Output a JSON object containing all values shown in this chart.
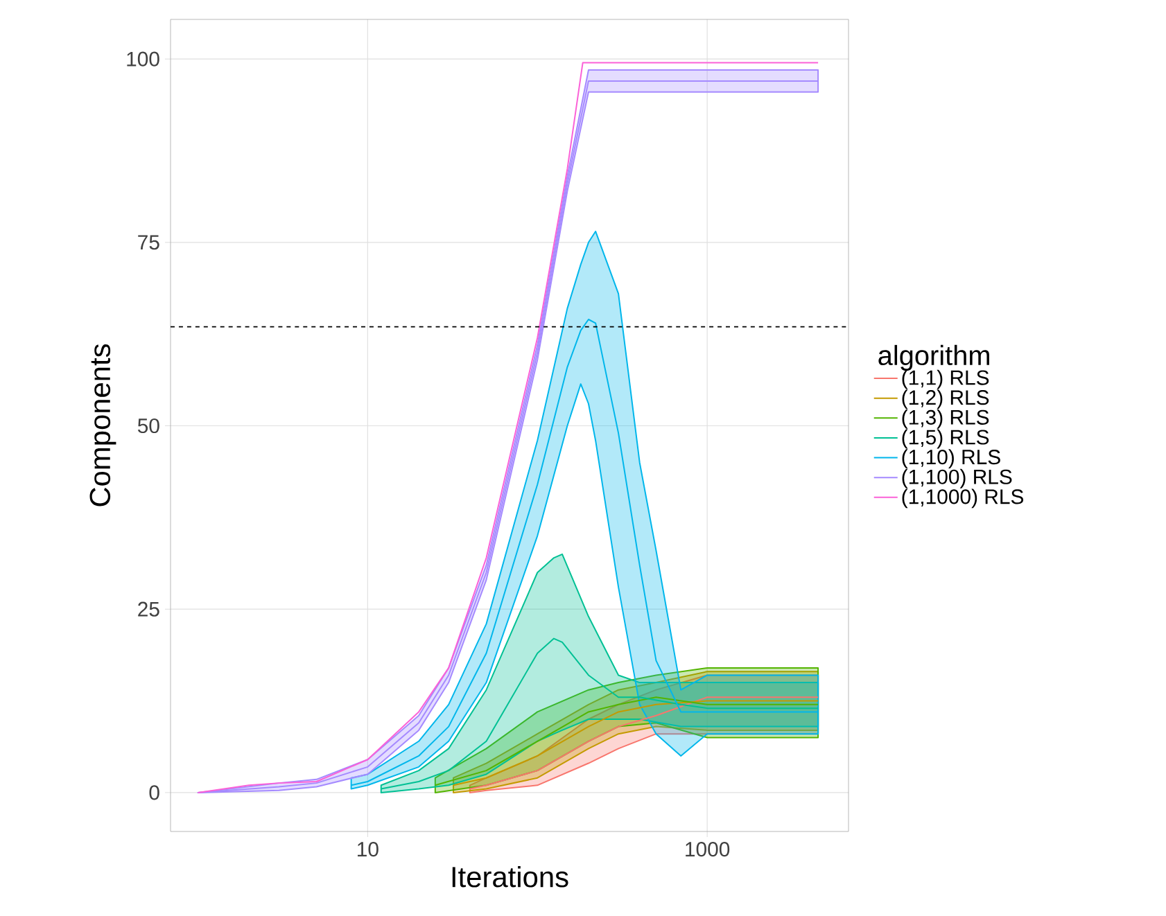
{
  "chart_data": {
    "type": "line",
    "xlabel": "Iterations",
    "ylabel": "Components",
    "legend_title": "algorithm",
    "log": "x",
    "grid": true,
    "legend": "right",
    "line_style": "solid",
    "marker": "none",
    "xlim": [
      0.69,
      6800
    ],
    "ylim": [
      -5.3,
      105.4
    ],
    "xticks": [
      10,
      1000
    ],
    "yticks": [
      0,
      25,
      50,
      75,
      100
    ],
    "ref_lines": [
      {
        "axis": "y",
        "value": 63.5,
        "color": "#000000",
        "line_style": "dashed"
      }
    ],
    "series": [
      {
        "name": "(1,1) RLS",
        "color": "#F8766D",
        "x": [
          40,
          50,
          100,
          200,
          300,
          500,
          1000,
          1500,
          2000,
          3000,
          4500
        ],
        "values": [
          0.5,
          1,
          3,
          7,
          9,
          10.5,
          13,
          13,
          13,
          13,
          13
        ],
        "lower": [
          0,
          0.3,
          1,
          4,
          6,
          8,
          8,
          8,
          8,
          8,
          8
        ],
        "upper": [
          1,
          2,
          5,
          10,
          12,
          14,
          16,
          16,
          16,
          16,
          16
        ]
      },
      {
        "name": "(1,2) RLS",
        "color": "#C49A00",
        "x": [
          32,
          50,
          100,
          200,
          300,
          500,
          1000,
          1500,
          2000,
          3000,
          4500
        ],
        "values": [
          1,
          2,
          5,
          9,
          11,
          12,
          12.5,
          12.5,
          12.5,
          12.5,
          12.5
        ],
        "lower": [
          0,
          0.5,
          2,
          6,
          8,
          9,
          8.5,
          8.5,
          8.5,
          8.5,
          8.5
        ],
        "upper": [
          2,
          4,
          8,
          12,
          14,
          15,
          16.5,
          16.5,
          16.5,
          16.5,
          16.5
        ]
      },
      {
        "name": "(1,3) RLS",
        "color": "#53B400",
        "x": [
          25,
          50,
          100,
          200,
          300,
          500,
          1000,
          1500,
          2000,
          3000,
          4500
        ],
        "values": [
          1,
          3,
          7,
          11,
          12,
          13,
          12,
          12,
          12,
          12,
          12
        ],
        "lower": [
          0,
          1,
          3,
          7,
          9,
          9.5,
          7.5,
          7.5,
          7.5,
          7.5,
          7.5
        ],
        "upper": [
          2,
          6,
          11,
          14,
          15,
          16,
          17,
          17,
          17,
          17,
          17
        ]
      },
      {
        "name": "(1,5) RLS",
        "color": "#00C094",
        "x": [
          12,
          20,
          30,
          50,
          100,
          125,
          140,
          200,
          300,
          400,
          700,
          1000,
          2000,
          4500
        ],
        "values": [
          0.5,
          1.5,
          3,
          7,
          19,
          21,
          20.5,
          16,
          13,
          13,
          12,
          11.5,
          11.5,
          11.5
        ],
        "lower": [
          0,
          0.5,
          1,
          2.5,
          7,
          8,
          8.5,
          10,
          10,
          10,
          9,
          9,
          9,
          9
        ],
        "upper": [
          1,
          3,
          6,
          14,
          30,
          32,
          32.5,
          24,
          16,
          15,
          15,
          15,
          15,
          15
        ]
      },
      {
        "name": "(1,10) RLS",
        "color": "#00B6EB",
        "x": [
          8,
          10,
          20,
          30,
          50,
          100,
          150,
          180,
          200,
          220,
          300,
          400,
          500,
          700,
          1000,
          1500,
          2000,
          3000,
          4500
        ],
        "values": [
          1,
          1.5,
          5,
          9,
          19,
          42,
          58,
          63,
          64.5,
          64,
          49,
          31,
          18,
          11,
          11,
          11,
          11,
          11,
          11
        ],
        "lower": [
          0.5,
          1,
          3.5,
          7,
          15,
          35,
          50,
          55.7,
          53,
          48,
          28,
          12,
          8,
          5,
          8,
          8,
          8,
          8,
          8
        ],
        "upper": [
          2,
          2.5,
          7,
          12,
          23,
          48,
          66,
          72,
          75,
          76.5,
          68,
          45,
          33,
          14,
          16,
          16,
          16,
          16,
          16
        ]
      },
      {
        "name": "(1,100) RLS",
        "color": "#A58AFF",
        "x": [
          1,
          3,
          5,
          10,
          20,
          30,
          50,
          100,
          150,
          200,
          500,
          1000,
          2000,
          4500
        ],
        "values": [
          0,
          0.8,
          1.3,
          3.5,
          9.5,
          16,
          30,
          60,
          83,
          97,
          97,
          97,
          97,
          97
        ],
        "lower": [
          0,
          0.3,
          0.8,
          2.5,
          8.5,
          15,
          29,
          59,
          82,
          95.5,
          95.5,
          95.5,
          95.5,
          95.5
        ],
        "upper": [
          0,
          1.3,
          1.8,
          4.5,
          10.5,
          17,
          31,
          61,
          84,
          98.5,
          98.5,
          98.5,
          98.5,
          98.5
        ]
      },
      {
        "name": "(1,1000) RLS",
        "color": "#FB61D7",
        "x": [
          1,
          2,
          3,
          5,
          10,
          20,
          30,
          50,
          100,
          150,
          185,
          200,
          500,
          1000,
          2000,
          4500
        ],
        "values": [
          0,
          1,
          1.3,
          1.5,
          4.5,
          11,
          17,
          32,
          62,
          85,
          99.5,
          99.5,
          99.5,
          99.5,
          99.5,
          99.5
        ]
      }
    ]
  }
}
